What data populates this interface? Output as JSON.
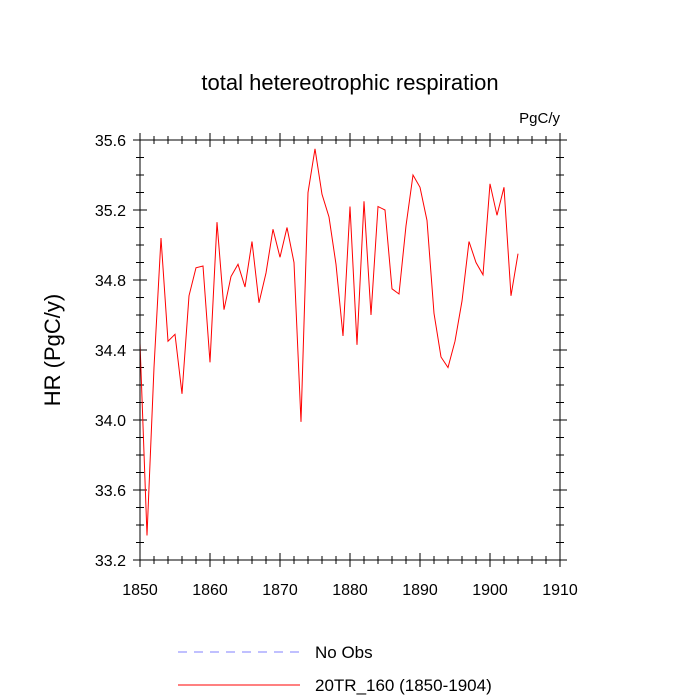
{
  "chart_data": {
    "type": "line",
    "title": "total hetereotrophic respiration",
    "units": "PgC/y",
    "ylabel": "HR  (PgC/y)",
    "xlabel": "",
    "xlim": [
      1850,
      1910
    ],
    "ylim": [
      33.2,
      35.6
    ],
    "xticks": [
      1850,
      1860,
      1870,
      1880,
      1890,
      1900,
      1910
    ],
    "xtick_labels": [
      "1850",
      "1860",
      "1870",
      "1880",
      "1890",
      "1900",
      "1910"
    ],
    "yticks": [
      33.2,
      33.6,
      34.0,
      34.4,
      34.8,
      35.2,
      35.6
    ],
    "ytick_labels": [
      "33.2",
      "33.6",
      "34.0",
      "34.4",
      "34.8",
      "35.2",
      "35.6"
    ],
    "series": [
      {
        "name": "No Obs",
        "color": "#8080ff",
        "style": "dashed",
        "x": [],
        "values": []
      },
      {
        "name": "20TR_160 (1850-1904)",
        "color": "#ff0000",
        "style": "solid",
        "x": [
          1850,
          1851,
          1852,
          1853,
          1854,
          1855,
          1856,
          1857,
          1858,
          1859,
          1860,
          1861,
          1862,
          1863,
          1864,
          1865,
          1866,
          1867,
          1868,
          1869,
          1870,
          1871,
          1872,
          1873,
          1874,
          1875,
          1876,
          1877,
          1878,
          1879,
          1880,
          1881,
          1882,
          1883,
          1884,
          1885,
          1886,
          1887,
          1888,
          1889,
          1890,
          1891,
          1892,
          1893,
          1894,
          1895,
          1896,
          1897,
          1898,
          1899,
          1900,
          1901,
          1902,
          1903,
          1904
        ],
        "values": [
          34.44,
          33.34,
          34.3,
          35.04,
          34.45,
          34.49,
          34.15,
          34.71,
          34.87,
          34.88,
          34.33,
          35.13,
          34.63,
          34.82,
          34.89,
          34.76,
          35.02,
          34.67,
          34.84,
          35.09,
          34.93,
          35.1,
          34.9,
          33.99,
          35.3,
          35.55,
          35.29,
          35.16,
          34.89,
          34.48,
          35.22,
          34.43,
          35.25,
          34.6,
          35.22,
          35.2,
          34.75,
          34.72,
          35.11,
          35.4,
          35.33,
          35.14,
          34.61,
          34.36,
          34.3,
          34.45,
          34.68,
          35.02,
          34.9,
          34.83,
          35.35,
          35.17,
          35.33,
          34.71,
          34.95
        ]
      }
    ],
    "legend": {
      "position": "bottom",
      "entries": [
        "No Obs",
        "20TR_160 (1850-1904)"
      ]
    }
  }
}
